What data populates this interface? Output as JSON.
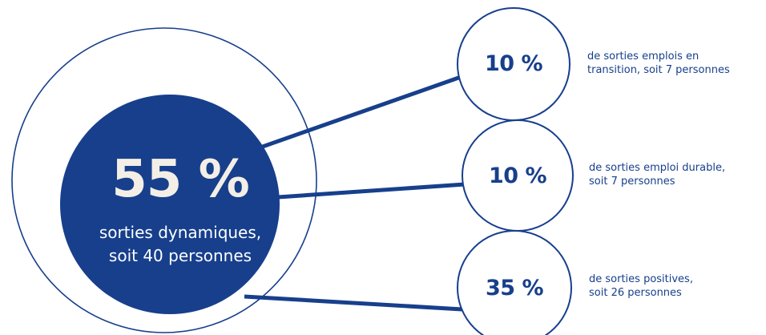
{
  "colors": {
    "primary": "#173f8c",
    "highlight": "#f3efe6",
    "background": "#ffffff"
  },
  "main": {
    "percent": "55 %",
    "caption_line1": "sorties dynamiques,",
    "caption_line2": "soit 40 personnes"
  },
  "items": [
    {
      "percent": "10 %",
      "line1": "de sorties emplois en",
      "line2": "transition, soit 7 personnes"
    },
    {
      "percent": "10 %",
      "line1": "de sorties emploi durable,",
      "line2": "soit 7 personnes"
    },
    {
      "percent": "35 %",
      "line1": "de sorties positives,",
      "line2": "soit 26 personnes"
    }
  ]
}
